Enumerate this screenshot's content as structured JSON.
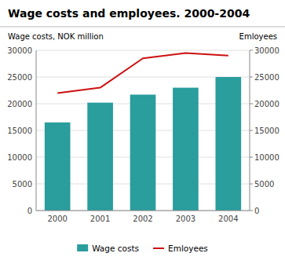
{
  "chart_data": {
    "type": "bar",
    "title": "Wage costs and employees. 2000-2004",
    "categories": [
      "2000",
      "2001",
      "2002",
      "2003",
      "2004"
    ],
    "ylabel": "Wage costs, NOK million",
    "y2label": "Emloyees",
    "series": [
      {
        "name": "Wage costs",
        "type": "bar",
        "color": "#2a9d9d",
        "values": [
          16500,
          20200,
          21700,
          23000,
          25000
        ]
      },
      {
        "name": "Emloyees",
        "type": "line",
        "axis": "y2",
        "color": "#cc1111",
        "values": [
          22000,
          23000,
          28500,
          29500,
          29000
        ]
      }
    ],
    "ylim": [
      0,
      30000
    ],
    "yticks": [
      0,
      5000,
      10000,
      15000,
      20000,
      25000,
      30000
    ],
    "y2lim": [
      0,
      30000
    ],
    "y2ticks": [
      0,
      5000,
      10000,
      15000,
      20000,
      25000,
      30000
    ],
    "grid": true,
    "legend": "bottom"
  }
}
